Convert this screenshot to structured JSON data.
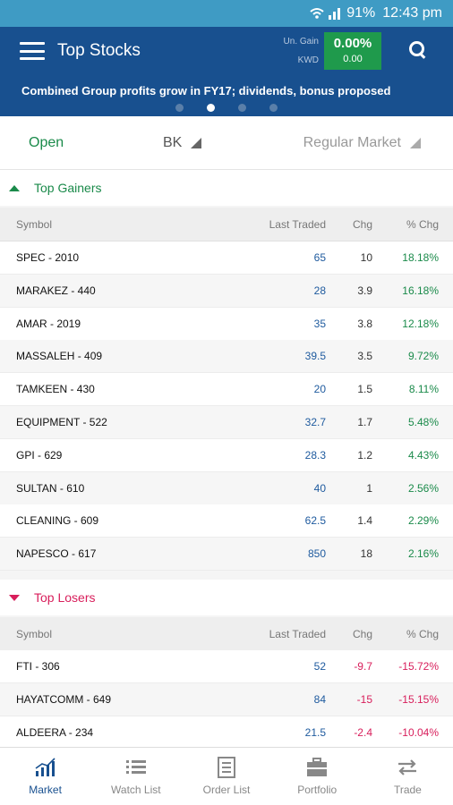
{
  "status_bar": {
    "battery": "91%",
    "time": "12:43 pm"
  },
  "app_bar": {
    "title": "Top Stocks",
    "gain_label": "Un. Gain",
    "currency_label": "KWD",
    "gain_percent": "0.00%",
    "gain_value": "0.00"
  },
  "news": {
    "headline": "Combined Group profits grow in FY17; dividends, bonus proposed"
  },
  "filters": {
    "status": "Open",
    "exchange": "BK",
    "market": "Regular Market"
  },
  "gainers": {
    "title": "Top Gainers",
    "columns": {
      "symbol": "Symbol",
      "last_traded": "Last Traded",
      "chg": "Chg",
      "pct_chg": "% Chg"
    },
    "rows": [
      {
        "symbol": "SPEC - 2010",
        "last": "65",
        "chg": "10",
        "pct": "18.18%"
      },
      {
        "symbol": "MARAKEZ - 440",
        "last": "28",
        "chg": "3.9",
        "pct": "16.18%"
      },
      {
        "symbol": "AMAR - 2019",
        "last": "35",
        "chg": "3.8",
        "pct": "12.18%"
      },
      {
        "symbol": "MASSALEH - 409",
        "last": "39.5",
        "chg": "3.5",
        "pct": "9.72%"
      },
      {
        "symbol": "TAMKEEN - 430",
        "last": "20",
        "chg": "1.5",
        "pct": "8.11%"
      },
      {
        "symbol": "EQUIPMENT - 522",
        "last": "32.7",
        "chg": "1.7",
        "pct": "5.48%"
      },
      {
        "symbol": "GPI - 629",
        "last": "28.3",
        "chg": "1.2",
        "pct": "4.43%"
      },
      {
        "symbol": "SULTAN - 610",
        "last": "40",
        "chg": "1",
        "pct": "2.56%"
      },
      {
        "symbol": "CLEANING - 609",
        "last": "62.5",
        "chg": "1.4",
        "pct": "2.29%"
      },
      {
        "symbol": "NAPESCO - 617",
        "last": "850",
        "chg": "18",
        "pct": "2.16%"
      }
    ]
  },
  "losers": {
    "title": "Top Losers",
    "columns": {
      "symbol": "Symbol",
      "last_traded": "Last Traded",
      "chg": "Chg",
      "pct_chg": "% Chg"
    },
    "rows": [
      {
        "symbol": "FTI - 306",
        "last": "52",
        "chg": "-9.7",
        "pct": "-15.72%"
      },
      {
        "symbol": "HAYATCOMM - 649",
        "last": "84",
        "chg": "-15",
        "pct": "-15.15%"
      },
      {
        "symbol": "ALDEERA - 234",
        "last": "21.5",
        "chg": "-2.4",
        "pct": "-10.04%"
      }
    ]
  },
  "nav": [
    {
      "label": "Market",
      "icon": "market-chart-icon"
    },
    {
      "label": "Watch List",
      "icon": "watch-list-icon"
    },
    {
      "label": "Order List",
      "icon": "order-list-icon"
    },
    {
      "label": "Portfolio",
      "icon": "portfolio-briefcase-icon"
    },
    {
      "label": "Trade",
      "icon": "trade-arrows-icon"
    }
  ],
  "colors": {
    "app_bar": "#18508f",
    "status_bar": "#3f9bc4",
    "gain_green": "#1a8a4a",
    "loss_red": "#d81e5b",
    "link_blue": "#1e5a9e"
  }
}
